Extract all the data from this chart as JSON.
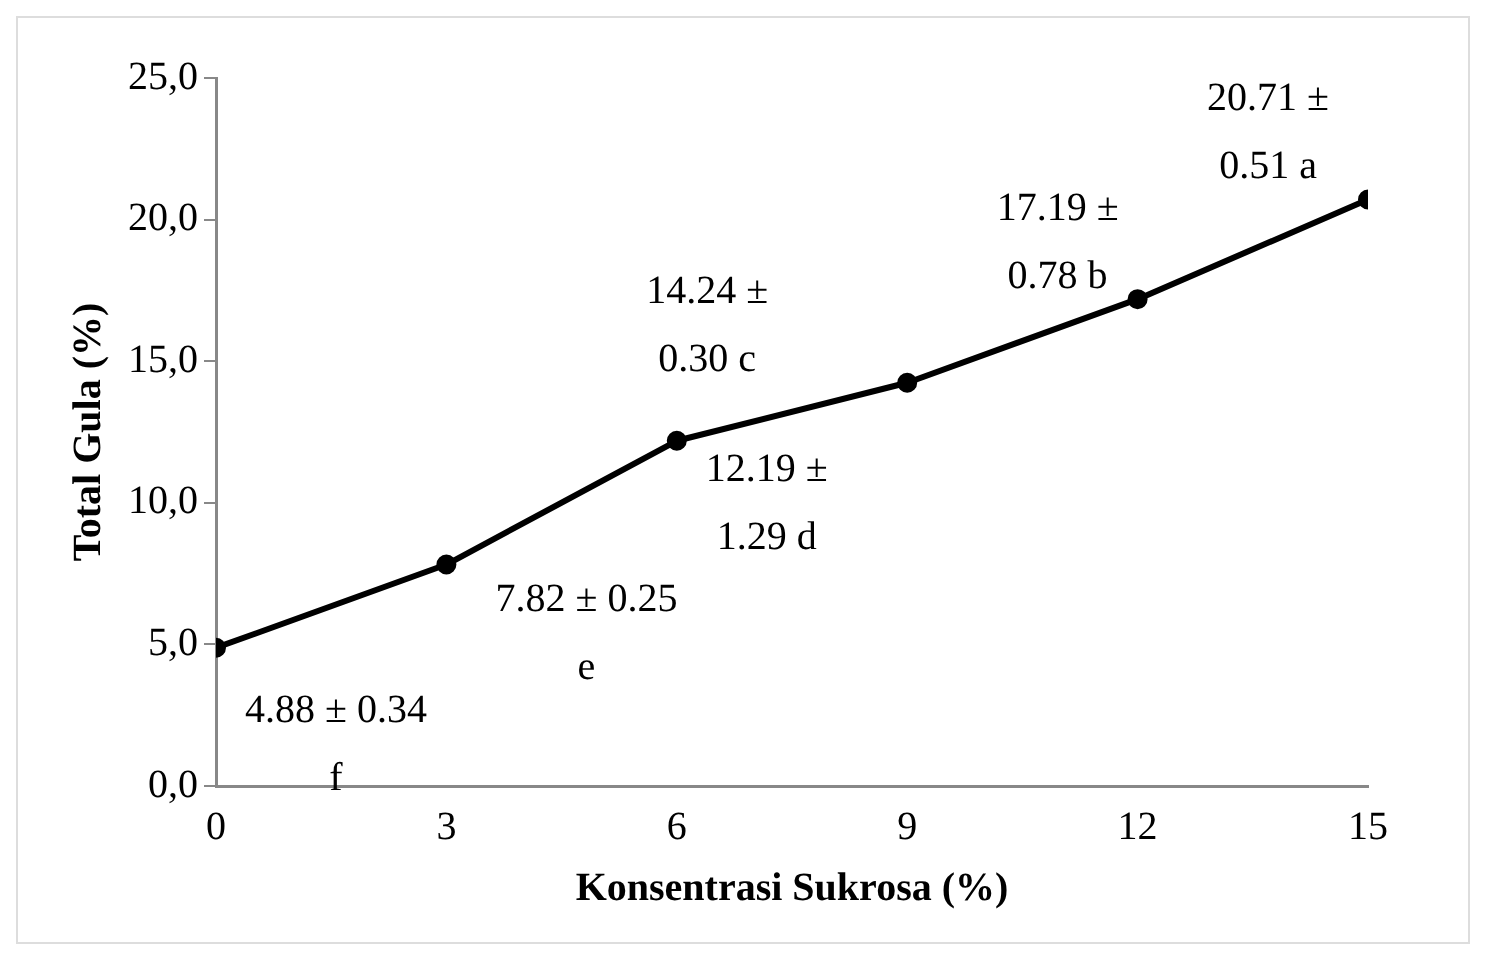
{
  "chart_data": {
    "type": "line",
    "xlabel": "Konsentrasi Sukrosa (%)",
    "ylabel": "Total Gula (%)",
    "x": [
      0,
      3,
      6,
      9,
      12,
      15
    ],
    "series": [
      {
        "color": "#000000",
        "values": [
          4.88,
          7.82,
          12.19,
          14.24,
          17.19,
          20.71
        ]
      }
    ],
    "value_labels": [
      "4.88 ± 0.34\nf",
      "7.82 ± 0.25\ne",
      "12.19 ±\n1.29 d",
      "14.24 ±\n0.30 c",
      "17.19 ±\n0.78 b",
      "20.71 ±\n0.51 a"
    ],
    "xlim": [
      0,
      15
    ],
    "xticks": [
      0,
      3,
      6,
      9,
      12,
      15
    ],
    "ylim": [
      0,
      25
    ],
    "yticks": [
      {
        "value": 0,
        "label": "0,0"
      },
      {
        "value": 5,
        "label": "5,0"
      },
      {
        "value": 10,
        "label": "10,0"
      },
      {
        "value": 15,
        "label": "15,0"
      },
      {
        "value": 20,
        "label": "20,0"
      },
      {
        "value": 25,
        "label": "25,0"
      }
    ],
    "grid": false,
    "legend": false,
    "marker": "circle",
    "line_style": "solid"
  }
}
